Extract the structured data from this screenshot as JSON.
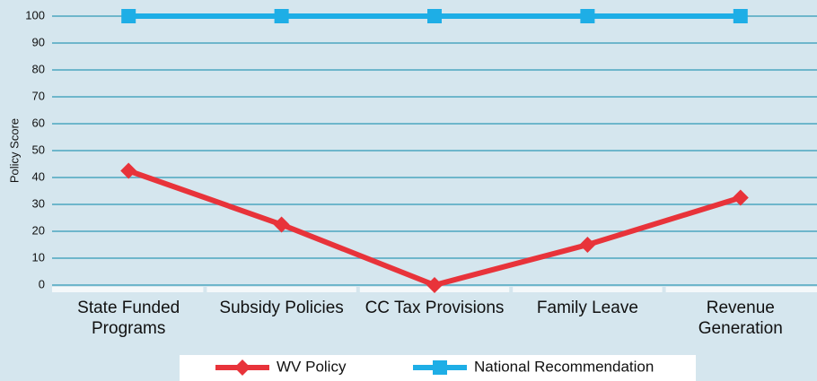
{
  "chart_data": {
    "type": "line",
    "y_label": "Policy Score",
    "categories": [
      "State Funded Programs",
      "Subsidy Policies",
      "CC Tax Provisions",
      "Family Leave",
      "Revenue Generation"
    ],
    "series": [
      {
        "name": "WV Policy",
        "color": "#e8333a",
        "marker": "diamond",
        "values": [
          42.5,
          22.5,
          0,
          15,
          32.5
        ]
      },
      {
        "name": "National Recommendation",
        "color": "#1eaee6",
        "marker": "square",
        "values": [
          100,
          100,
          100,
          100,
          100
        ]
      }
    ],
    "ylim": [
      0,
      100
    ],
    "yticks": [
      0,
      10,
      20,
      30,
      40,
      50,
      60,
      70,
      80,
      90,
      100
    ],
    "grid": true,
    "legend": "bottom"
  }
}
